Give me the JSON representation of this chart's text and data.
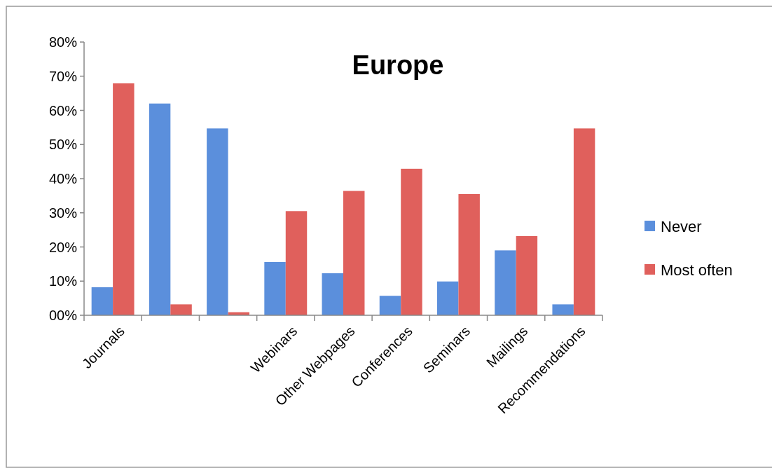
{
  "chart_data": {
    "type": "bar",
    "title": "Europe",
    "categories": [
      "Journals",
      null,
      null,
      "Webinars",
      "Other Webpages",
      "Conferences",
      "Seminars",
      "Mailings",
      "Recommendations"
    ],
    "series": [
      {
        "name": "Never",
        "color": "#5b8fdc",
        "values": [
          8.2,
          62,
          54.7,
          15.6,
          12.3,
          5.7,
          9.9,
          19,
          3.2
        ]
      },
      {
        "name": "Most often",
        "color": "#e0605c",
        "values": [
          67.9,
          3.2,
          0.9,
          30.5,
          36.4,
          42.9,
          35.5,
          23.2,
          54.7
        ]
      }
    ],
    "ylim": [
      0,
      80
    ],
    "yticks": [
      {
        "value": 0,
        "label": "00%"
      },
      {
        "value": 10,
        "label": "10%"
      },
      {
        "value": 20,
        "label": "20%"
      },
      {
        "value": 30,
        "label": "30%"
      },
      {
        "value": 40,
        "label": "40%"
      },
      {
        "value": 50,
        "label": "50%"
      },
      {
        "value": 60,
        "label": "60%"
      },
      {
        "value": 70,
        "label": "70%"
      },
      {
        "value": 80,
        "label": "80%"
      }
    ],
    "grid": false,
    "legend": "right"
  }
}
